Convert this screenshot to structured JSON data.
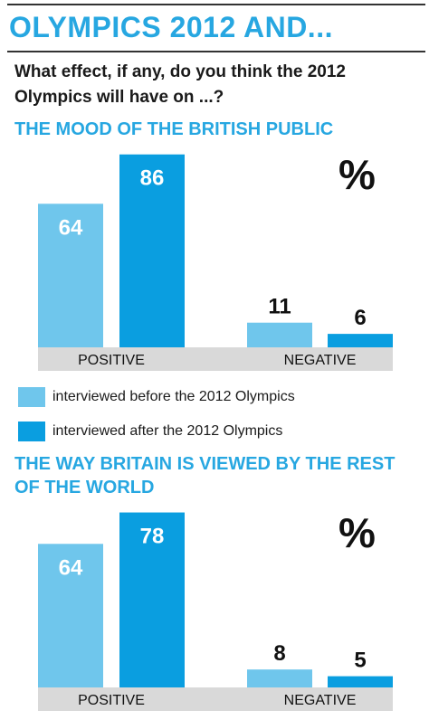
{
  "page": {
    "title": "OLYMPICS 2012 AND...",
    "question": "What effect, if any, do you think the 2012 Olympics will have on ...?",
    "percent_symbol": "%"
  },
  "colors": {
    "before": "#6fc6ec",
    "after": "#0a9ee0",
    "accent": "#27a7e1",
    "axis_band": "#d9d9d9"
  },
  "legend": {
    "before_label": "interviewed before the 2012 Olympics",
    "after_label": "interviewed after the 2012 Olympics"
  },
  "chart_data": [
    {
      "type": "bar",
      "title": "THE MOOD OF THE BRITISH PUBLIC",
      "unit": "%",
      "categories": [
        "POSITIVE",
        "NEGATIVE"
      ],
      "series": [
        {
          "name": "interviewed before the 2012 Olympics",
          "values": [
            64,
            11
          ]
        },
        {
          "name": "interviewed after the 2012 Olympics",
          "values": [
            86,
            6
          ]
        }
      ],
      "ylim": [
        0,
        100
      ]
    },
    {
      "type": "bar",
      "title": "THE WAY BRITAIN IS VIEWED BY THE REST OF THE WORLD",
      "unit": "%",
      "categories": [
        "POSITIVE",
        "NEGATIVE"
      ],
      "series": [
        {
          "name": "interviewed before the 2012 Olympics",
          "values": [
            64,
            8
          ]
        },
        {
          "name": "interviewed after the 2012 Olympics",
          "values": [
            78,
            5
          ]
        }
      ],
      "ylim": [
        0,
        100
      ]
    }
  ]
}
